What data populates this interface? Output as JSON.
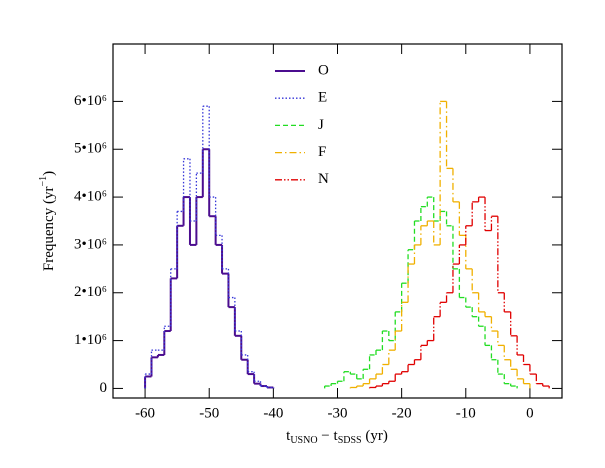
{
  "chart_data": {
    "type": "histogram",
    "xlabel": [
      "t",
      "USNO",
      " − t",
      "SDSS",
      " (yr)"
    ],
    "ylabel": [
      "Frequency (yr",
      "−1",
      ")"
    ],
    "xlim": [
      -65,
      5
    ],
    "xticks": [
      -60,
      -50,
      -40,
      -30,
      -20,
      -10,
      0
    ],
    "ylim": [
      -200000,
      7200000
    ],
    "yticks": [
      0,
      {
        "value": 1000000,
        "label": "1•10⁶"
      },
      {
        "value": 2000000,
        "label": "2•10⁶"
      },
      {
        "value": 3000000,
        "label": "3•10⁶"
      },
      {
        "value": 4000000,
        "label": "4•10⁶"
      },
      {
        "value": 5000000,
        "label": "5•10⁶"
      },
      {
        "value": 6000000,
        "label": "6•10⁶"
      }
    ],
    "legend": "upper center",
    "series": [
      {
        "name": "O",
        "color": "#4b0d8f",
        "linestyle": "solid",
        "bins": [
          -60,
          -59,
          -58,
          -57,
          -56,
          -55,
          -54,
          -53,
          -52,
          -51,
          -50,
          -49,
          -48,
          -47,
          -46,
          -45,
          -44,
          -43,
          -42,
          -41,
          -40
        ],
        "values": [
          250000,
          650000,
          700000,
          1200000,
          2300000,
          3400000,
          4000000,
          3000000,
          4000000,
          5000000,
          3600000,
          3000000,
          2400000,
          1700000,
          1100000,
          600000,
          300000,
          100000,
          50000,
          20000
        ]
      },
      {
        "name": "E",
        "color": "#3535d8",
        "linestyle": "dotted",
        "bins": [
          -60,
          -59,
          -58,
          -57,
          -56,
          -55,
          -54,
          -53,
          -52,
          -51,
          -50,
          -49,
          -48,
          -47,
          -46,
          -45,
          -44,
          -43,
          -42,
          -41,
          -40
        ],
        "values": [
          300000,
          800000,
          800000,
          1300000,
          2500000,
          3700000,
          4800000,
          3500000,
          4500000,
          5900000,
          4000000,
          3200000,
          2500000,
          1900000,
          1200000,
          700000,
          350000,
          150000,
          50000,
          20000
        ]
      },
      {
        "name": "J",
        "color": "#22dd22",
        "linestyle": "dashed",
        "bins": [
          -32,
          -31,
          -30,
          -29,
          -28,
          -27,
          -26,
          -25,
          -24,
          -23,
          -22,
          -21,
          -20,
          -19,
          -18,
          -17,
          -16,
          -15,
          -14,
          -13,
          -12,
          -11,
          -10,
          -9,
          -8,
          -7,
          -6,
          -5,
          -4,
          -3,
          -2
        ],
        "values": [
          50000,
          100000,
          150000,
          350000,
          300000,
          200000,
          400000,
          700000,
          800000,
          1200000,
          1000000,
          1600000,
          2200000,
          2900000,
          3500000,
          3800000,
          4000000,
          3500000,
          3700000,
          3400000,
          2500000,
          1900000,
          1700000,
          1500000,
          1300000,
          900000,
          600000,
          300000,
          100000,
          50000
        ]
      },
      {
        "name": "F",
        "color": "#f0b000",
        "linestyle": "dashdot",
        "bins": [
          -28,
          -27,
          -26,
          -25,
          -24,
          -23,
          -22,
          -21,
          -20,
          -19,
          -18,
          -17,
          -16,
          -15,
          -14,
          -13,
          -12,
          -11,
          -10,
          -9,
          -8,
          -7,
          -6,
          -5,
          -4,
          -3,
          -2,
          -1,
          0
        ],
        "values": [
          20000,
          50000,
          100000,
          200000,
          300000,
          500000,
          800000,
          1200000,
          1800000,
          2600000,
          3000000,
          3400000,
          3500000,
          3000000,
          6000000,
          4600000,
          3900000,
          3200000,
          2500000,
          2000000,
          1600000,
          1500000,
          1200000,
          900000,
          600000,
          400000,
          200000,
          100000
        ]
      },
      {
        "name": "N",
        "color": "#e00000",
        "linestyle": "dashdotdot",
        "bins": [
          -25,
          -24,
          -23,
          -22,
          -21,
          -20,
          -19,
          -18,
          -17,
          -16,
          -15,
          -14,
          -13,
          -12,
          -11,
          -10,
          -9,
          -8,
          -7,
          -6,
          -5,
          -4,
          -3,
          -2,
          -1,
          0,
          1,
          2,
          3
        ],
        "values": [
          20000,
          50000,
          100000,
          150000,
          300000,
          350000,
          500000,
          600000,
          900000,
          1000000,
          1500000,
          1800000,
          2000000,
          2600000,
          3000000,
          3400000,
          3900000,
          4000000,
          3300000,
          3600000,
          2000000,
          1600000,
          1100000,
          700000,
          500000,
          300000,
          100000,
          50000
        ]
      }
    ]
  }
}
